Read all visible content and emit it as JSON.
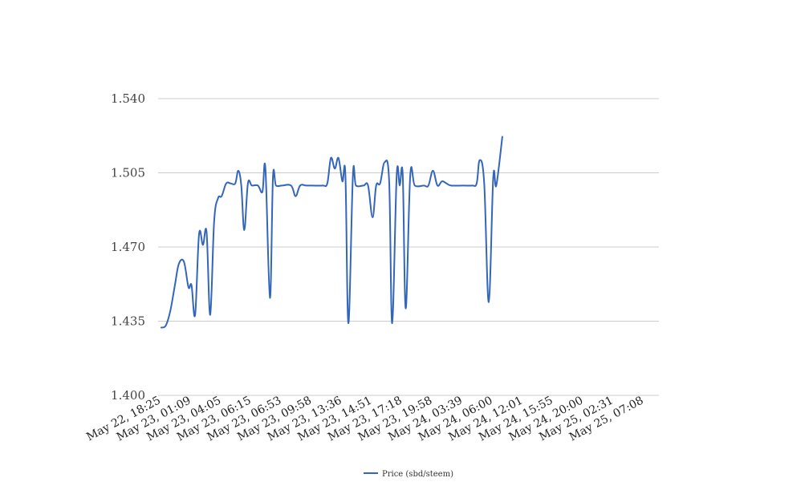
{
  "chart_data": {
    "type": "line",
    "title": "",
    "xlabel": "",
    "ylabel": "",
    "ylim": [
      1.4,
      1.54
    ],
    "yticks": [
      "1.400",
      "1.435",
      "1.470",
      "1.505",
      "1.540"
    ],
    "grid": true,
    "legend_position": "bottom-center",
    "categories": [
      "May 22, 18:25",
      "May 23, 01:09",
      "May 23, 04:05",
      "May 23, 06:15",
      "May 23, 06:53",
      "May 23, 09:58",
      "May 23, 13:36",
      "May 23, 14:51",
      "May 23, 17:18",
      "May 23, 19:58",
      "May 24, 03:39",
      "May 24, 06:00",
      "May 24, 12:01",
      "May 24, 15:55",
      "May 24, 20:00",
      "May 25, 02:31",
      "May 25, 07:08"
    ],
    "series": [
      {
        "name": "Price (sbd/steem)",
        "color": "#3366bb",
        "points": [
          [
            0.0,
            1.432
          ],
          [
            0.15,
            1.433
          ],
          [
            0.3,
            1.44
          ],
          [
            0.45,
            1.452
          ],
          [
            0.58,
            1.462
          ],
          [
            0.75,
            1.463
          ],
          [
            0.9,
            1.451
          ],
          [
            1.0,
            1.452
          ],
          [
            1.12,
            1.438
          ],
          [
            1.25,
            1.476
          ],
          [
            1.38,
            1.471
          ],
          [
            1.5,
            1.477
          ],
          [
            1.62,
            1.438
          ],
          [
            1.75,
            1.482
          ],
          [
            1.88,
            1.493
          ],
          [
            2.0,
            1.494
          ],
          [
            2.15,
            1.5
          ],
          [
            2.3,
            1.5
          ],
          [
            2.45,
            1.5
          ],
          [
            2.55,
            1.506
          ],
          [
            2.65,
            1.499
          ],
          [
            2.75,
            1.478
          ],
          [
            2.87,
            1.5
          ],
          [
            3.0,
            1.499
          ],
          [
            3.2,
            1.499
          ],
          [
            3.35,
            1.496
          ],
          [
            3.45,
            1.507
          ],
          [
            3.6,
            1.446
          ],
          [
            3.7,
            1.503
          ],
          [
            3.8,
            1.499
          ],
          [
            4.0,
            1.499
          ],
          [
            4.3,
            1.499
          ],
          [
            4.45,
            1.494
          ],
          [
            4.6,
            1.499
          ],
          [
            4.8,
            1.499
          ],
          [
            5.0,
            1.499
          ],
          [
            5.35,
            1.499
          ],
          [
            5.5,
            1.5
          ],
          [
            5.62,
            1.512
          ],
          [
            5.75,
            1.507
          ],
          [
            5.87,
            1.512
          ],
          [
            6.0,
            1.501
          ],
          [
            6.1,
            1.504
          ],
          [
            6.2,
            1.434
          ],
          [
            6.35,
            1.504
          ],
          [
            6.45,
            1.499
          ],
          [
            6.7,
            1.499
          ],
          [
            6.85,
            1.499
          ],
          [
            7.0,
            1.484
          ],
          [
            7.12,
            1.499
          ],
          [
            7.25,
            1.5
          ],
          [
            7.4,
            1.51
          ],
          [
            7.55,
            1.501
          ],
          [
            7.65,
            1.434
          ],
          [
            7.8,
            1.504
          ],
          [
            7.9,
            1.499
          ],
          [
            8.0,
            1.504
          ],
          [
            8.1,
            1.441
          ],
          [
            8.25,
            1.504
          ],
          [
            8.4,
            1.499
          ],
          [
            8.7,
            1.499
          ],
          [
            8.85,
            1.499
          ],
          [
            9.0,
            1.506
          ],
          [
            9.15,
            1.499
          ],
          [
            9.3,
            1.501
          ],
          [
            9.45,
            1.5
          ],
          [
            9.6,
            1.499
          ],
          [
            10.0,
            1.499
          ],
          [
            10.3,
            1.499
          ],
          [
            10.45,
            1.5
          ],
          [
            10.55,
            1.511
          ],
          [
            10.7,
            1.5
          ],
          [
            10.85,
            1.444
          ],
          [
            11.0,
            1.503
          ],
          [
            11.1,
            1.499
          ],
          [
            11.3,
            1.522
          ]
        ]
      }
    ]
  }
}
